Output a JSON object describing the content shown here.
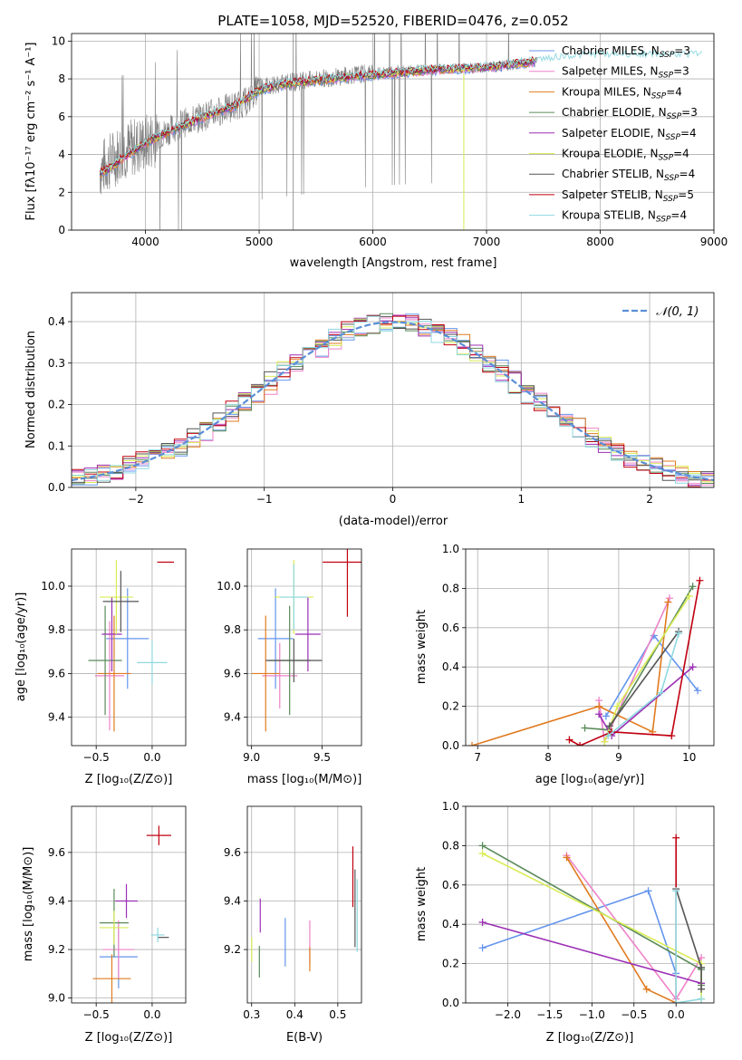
{
  "series_styles": [
    {
      "name": "Chabrier MILES",
      "nssp": "3",
      "color": "#6495ed"
    },
    {
      "name": "Salpeter MILES",
      "nssp": "3",
      "color": "#ee82c8"
    },
    {
      "name": "Kroupa MILES",
      "nssp": "4",
      "color": "#e07b20"
    },
    {
      "name": "Chabrier ELODIE",
      "nssp": "3",
      "color": "#5a8a5a"
    },
    {
      "name": "Salpeter ELODIE",
      "nssp": "4",
      "color": "#9b2fb5"
    },
    {
      "name": "Kroupa ELODIE",
      "nssp": "4",
      "color": "#d9ec55"
    },
    {
      "name": "Chabrier STELIB",
      "nssp": "4",
      "color": "#555555"
    },
    {
      "name": "Salpeter STELIB",
      "nssp": "5",
      "color": "#c00010"
    },
    {
      "name": "Kroupa STELIB",
      "nssp": "4",
      "color": "#8fd8e0"
    }
  ],
  "chart_data": [
    {
      "type": "line",
      "title": "PLATE=1058, MJD=52520, FIBERID=0476, z=0.052",
      "xlabel": "wavelength [Angstrom, rest frame]",
      "ylabel": "Flux [fλ10⁻¹⁷ erg cm⁻² s⁻¹ A⁻¹]",
      "xlim": [
        3350,
        9000
      ],
      "ylim": [
        0,
        10.4
      ],
      "xticks": [
        4000,
        5000,
        6000,
        7000,
        8000,
        9000
      ],
      "yticks": [
        0,
        2,
        4,
        6,
        8,
        10
      ],
      "legend": "upper right",
      "data_series": {
        "name": "data",
        "color": "#808080",
        "x_range": [
          3600,
          7430
        ],
        "continuum": [
          [
            3600,
            3.2
          ],
          [
            3800,
            4.2
          ],
          [
            4000,
            4.6
          ],
          [
            4300,
            5.6
          ],
          [
            4700,
            6.4
          ],
          [
            4900,
            6.8
          ],
          [
            5000,
            7.6
          ],
          [
            5400,
            7.9
          ],
          [
            5800,
            8.2
          ],
          [
            6200,
            8.4
          ],
          [
            6600,
            8.5
          ],
          [
            7000,
            8.6
          ],
          [
            7430,
            8.9
          ]
        ]
      },
      "model_continuum": [
        [
          3600,
          3.0
        ],
        [
          3700,
          3.3
        ],
        [
          3800,
          3.8
        ],
        [
          3900,
          4.2
        ],
        [
          4000,
          4.6
        ],
        [
          4200,
          5.2
        ],
        [
          4400,
          5.7
        ],
        [
          4600,
          6.2
        ],
        [
          4800,
          6.6
        ],
        [
          5000,
          7.4
        ],
        [
          5200,
          7.7
        ],
        [
          5500,
          7.9
        ],
        [
          5800,
          8.1
        ],
        [
          6200,
          8.3
        ],
        [
          6600,
          8.5
        ],
        [
          7000,
          8.6
        ],
        [
          7400,
          8.9
        ],
        [
          7700,
          9.1
        ],
        [
          8000,
          9.2
        ],
        [
          8400,
          9.2
        ],
        [
          8900,
          9.2
        ]
      ]
    },
    {
      "type": "line",
      "xlabel": "(data-model)/error",
      "ylabel": "Normed distribution",
      "xlim": [
        -2.5,
        2.5
      ],
      "ylim": [
        0,
        0.47
      ],
      "xticks": [
        -2,
        -1,
        0,
        1,
        2
      ],
      "yticks": [
        0.0,
        0.1,
        0.2,
        0.3,
        0.4
      ],
      "legend_label": "𝒩(0, 1)",
      "legend_color": "#5b8fd6",
      "bin_width": 0.1
    },
    {
      "type": "scatter",
      "xlabel": "Z [log₁₀(Z/Z⊙)]",
      "ylabel": "age  [log₁₀(age/yr)]",
      "xlim": [
        -0.72,
        0.3
      ],
      "ylim": [
        9.27,
        10.17
      ],
      "xticks": [
        -0.5,
        0.0
      ],
      "yticks": [
        9.4,
        9.6,
        9.8,
        10.0
      ],
      "points": [
        {
          "s": 0,
          "x": -0.22,
          "y": 9.76,
          "dx": 0.38,
          "dy": 0.46
        },
        {
          "s": 1,
          "x": -0.38,
          "y": 9.59,
          "dx": 0.26,
          "dy": 0.5
        },
        {
          "s": 2,
          "x": -0.34,
          "y": 9.6,
          "dx": 0.3,
          "dy": 0.53
        },
        {
          "s": 3,
          "x": -0.42,
          "y": 9.66,
          "dx": 0.3,
          "dy": 0.5
        },
        {
          "s": 4,
          "x": -0.36,
          "y": 9.78,
          "dx": 0.18,
          "dy": 0.34
        },
        {
          "s": 5,
          "x": -0.32,
          "y": 9.95,
          "dx": 0.3,
          "dy": 0.34
        },
        {
          "s": 6,
          "x": -0.28,
          "y": 9.93,
          "dx": 0.32,
          "dy": 0.28
        },
        {
          "s": 7,
          "x": 0.12,
          "y": 10.11,
          "dx": 0.15,
          "dy": 0.0
        },
        {
          "s": 8,
          "x": 0.0,
          "y": 9.65,
          "dx": 0.27,
          "dy": 0.2
        }
      ]
    },
    {
      "type": "scatter",
      "xlabel": "mass [log₁₀(M/M⊙)]",
      "xlim": [
        8.97,
        9.78
      ],
      "ylim": [
        9.27,
        10.17
      ],
      "xticks": [
        9.0,
        9.5
      ],
      "yticks": [
        9.4,
        9.6,
        9.8,
        10.0
      ],
      "points": [
        {
          "s": 0,
          "x": 9.17,
          "y": 9.76,
          "dx": 0.25,
          "dy": 0.46
        },
        {
          "s": 1,
          "x": 9.2,
          "y": 9.59,
          "dx": 0.25,
          "dy": 0.3
        },
        {
          "s": 2,
          "x": 9.1,
          "y": 9.6,
          "dx": 0.2,
          "dy": 0.53
        },
        {
          "s": 3,
          "x": 9.27,
          "y": 9.66,
          "dx": 0.3,
          "dy": 0.5
        },
        {
          "s": 4,
          "x": 9.4,
          "y": 9.78,
          "dx": 0.18,
          "dy": 0.34
        },
        {
          "s": 5,
          "x": 9.3,
          "y": 9.95,
          "dx": 0.28,
          "dy": 0.34
        },
        {
          "s": 6,
          "x": 9.3,
          "y": 9.66,
          "dx": 0.4,
          "dy": 0.2
        },
        {
          "s": 7,
          "x": 9.68,
          "y": 10.11,
          "dx": 0.35,
          "dy": 0.5
        },
        {
          "s": 8,
          "x": 9.3,
          "y": 9.95,
          "dx": 0.2,
          "dy": 0.3
        }
      ]
    },
    {
      "type": "line",
      "xlabel": "age  [log₁₀(age/yr)]",
      "ylabel": "mass weight",
      "xlim": [
        6.83,
        10.35
      ],
      "ylim": [
        0,
        1.0
      ],
      "xticks": [
        7,
        8,
        9,
        10
      ],
      "yticks": [
        0.0,
        0.2,
        0.4,
        0.6,
        0.8,
        1.0
      ],
      "series": [
        {
          "s": 0,
          "points": [
            [
              8.82,
              0.15
            ],
            [
              9.5,
              0.56
            ],
            [
              10.12,
              0.28
            ]
          ]
        },
        {
          "s": 1,
          "points": [
            [
              8.72,
              0.23
            ],
            [
              8.8,
              0.02
            ],
            [
              9.72,
              0.75
            ]
          ]
        },
        {
          "s": 2,
          "points": [
            [
              6.92,
              0.0
            ],
            [
              8.72,
              0.2
            ],
            [
              9.48,
              0.07
            ],
            [
              9.7,
              0.73
            ]
          ]
        },
        {
          "s": 3,
          "points": [
            [
              8.52,
              0.09
            ],
            [
              8.85,
              0.08
            ],
            [
              10.05,
              0.81
            ]
          ]
        },
        {
          "s": 4,
          "points": [
            [
              8.72,
              0.16
            ],
            [
              8.9,
              0.05
            ],
            [
              10.05,
              0.4
            ]
          ]
        },
        {
          "s": 5,
          "points": [
            [
              8.8,
              0.02
            ],
            [
              8.98,
              0.2
            ],
            [
              10.0,
              0.76
            ]
          ]
        },
        {
          "s": 6,
          "points": [
            [
              8.87,
              0.1
            ],
            [
              9.85,
              0.58
            ]
          ]
        },
        {
          "s": 7,
          "points": [
            [
              8.3,
              0.03
            ],
            [
              8.45,
              0.0
            ],
            [
              8.9,
              0.07
            ],
            [
              9.75,
              0.05
            ],
            [
              10.15,
              0.84
            ]
          ]
        },
        {
          "s": 8,
          "points": [
            [
              8.85,
              0.05
            ],
            [
              9.6,
              0.27
            ],
            [
              9.85,
              0.57
            ]
          ]
        }
      ]
    },
    {
      "type": "scatter",
      "xlabel": "Z [log₁₀(Z/Z⊙)]",
      "ylabel": "mass [log₁₀(M/M⊙)]",
      "xlim": [
        -0.72,
        0.3
      ],
      "ylim": [
        8.98,
        9.79
      ],
      "xticks": [
        -0.5,
        0.0
      ],
      "yticks": [
        9.0,
        9.2,
        9.4,
        9.6
      ],
      "points": [
        {
          "s": 0,
          "x": -0.3,
          "y": 9.17,
          "dx": 0.34,
          "dy": 0.26
        },
        {
          "s": 1,
          "x": -0.3,
          "y": 9.2,
          "dx": 0.28,
          "dy": 0.24
        },
        {
          "s": 2,
          "x": -0.36,
          "y": 9.08,
          "dx": 0.34,
          "dy": 0.2
        },
        {
          "s": 3,
          "x": -0.34,
          "y": 9.31,
          "dx": 0.26,
          "dy": 0.28
        },
        {
          "s": 4,
          "x": -0.23,
          "y": 9.4,
          "dx": 0.2,
          "dy": 0.14
        },
        {
          "s": 5,
          "x": -0.34,
          "y": 9.29,
          "dx": 0.26,
          "dy": 0.14
        },
        {
          "s": 6,
          "x": 0.1,
          "y": 9.25,
          "dx": 0.1,
          "dy": 0.0
        },
        {
          "s": 7,
          "x": 0.06,
          "y": 9.67,
          "dx": 0.22,
          "dy": 0.08
        },
        {
          "s": 8,
          "x": 0.05,
          "y": 9.26,
          "dx": 0.12,
          "dy": 0.06
        }
      ]
    },
    {
      "type": "scatter",
      "xlabel": "E(B-V)",
      "xlim": [
        0.29,
        0.555
      ],
      "ylim": [
        8.98,
        9.79
      ],
      "xticks": [
        0.3,
        0.4,
        0.5
      ],
      "yticks": [
        9.2,
        9.4,
        9.6
      ],
      "points": [
        {
          "s": 0,
          "x": 0.378,
          "y": 9.23,
          "dx": 0,
          "dy": 0.2
        },
        {
          "s": 1,
          "x": 0.435,
          "y": 9.23,
          "dx": 0,
          "dy": 0.18
        },
        {
          "s": 2,
          "x": 0.435,
          "y": 9.16,
          "dx": 0,
          "dy": 0.1
        },
        {
          "s": 3,
          "x": 0.318,
          "y": 9.15,
          "dx": 0,
          "dy": 0.13
        },
        {
          "s": 4,
          "x": 0.32,
          "y": 9.34,
          "dx": 0,
          "dy": 0.14
        },
        {
          "s": 5,
          "x": 0.3,
          "y": 9.2,
          "dx": 0,
          "dy": 0.1
        },
        {
          "s": 6,
          "x": 0.54,
          "y": 9.37,
          "dx": 0,
          "dy": 0.32
        },
        {
          "s": 7,
          "x": 0.535,
          "y": 9.5,
          "dx": 0,
          "dy": 0.25
        },
        {
          "s": 8,
          "x": 0.545,
          "y": 9.34,
          "dx": 0,
          "dy": 0.3
        }
      ]
    },
    {
      "type": "line",
      "xlabel": "Z [log₁₀(Z/Z⊙)]",
      "ylabel": "mass weight",
      "xlim": [
        -2.5,
        0.45
      ],
      "ylim": [
        0,
        1.0
      ],
      "xticks": [
        -2.0,
        -1.5,
        -1.0,
        -0.5,
        0.0
      ],
      "yticks": [
        0.0,
        0.2,
        0.4,
        0.6,
        0.8,
        1.0
      ],
      "series": [
        {
          "s": 0,
          "points": [
            [
              -2.3,
              0.28
            ],
            [
              -0.33,
              0.57
            ],
            [
              0.0,
              0.15
            ]
          ]
        },
        {
          "s": 1,
          "points": [
            [
              -1.3,
              0.75
            ],
            [
              0.0,
              0.02
            ],
            [
              0.3,
              0.23
            ]
          ]
        },
        {
          "s": 2,
          "points": [
            [
              -1.3,
              0.74
            ],
            [
              -0.35,
              0.07
            ],
            [
              0.0,
              0.0
            ]
          ]
        },
        {
          "s": 3,
          "points": [
            [
              -2.3,
              0.8
            ],
            [
              0.3,
              0.17
            ],
            [
              0.3,
              0.09
            ]
          ]
        },
        {
          "s": 4,
          "points": [
            [
              -2.3,
              0.41
            ],
            [
              0.3,
              0.1
            ]
          ]
        },
        {
          "s": 5,
          "points": [
            [
              -2.3,
              0.76
            ],
            [
              0.3,
              0.2
            ],
            [
              0.3,
              0.02
            ]
          ]
        },
        {
          "s": 6,
          "points": [
            [
              0.0,
              0.58
            ],
            [
              0.3,
              0.18
            ],
            [
              0.3,
              0.07
            ]
          ]
        },
        {
          "s": 7,
          "points": [
            [
              0.0,
              0.84
            ],
            [
              0.0,
              0.0
            ]
          ]
        },
        {
          "s": 8,
          "points": [
            [
              0.0,
              0.57
            ],
            [
              0.0,
              0.0
            ],
            [
              0.3,
              0.02
            ]
          ]
        }
      ]
    }
  ]
}
